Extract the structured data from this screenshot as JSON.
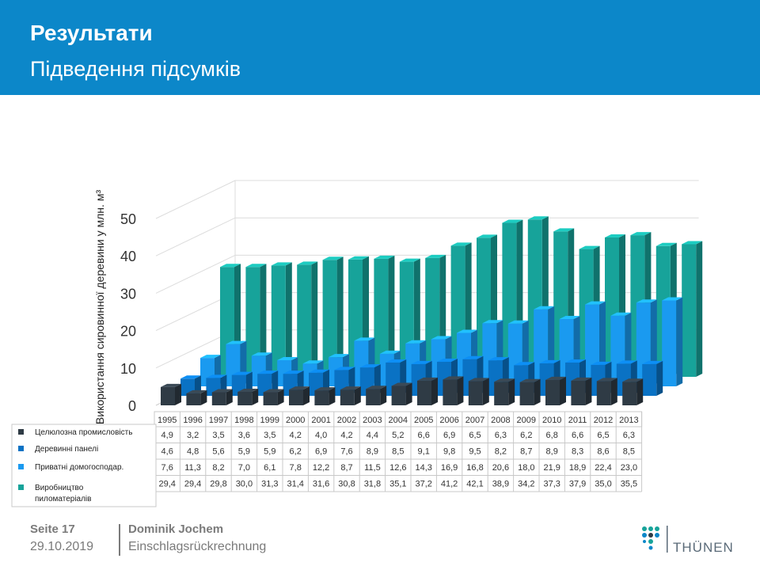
{
  "header": {
    "title": "Результати",
    "subtitle": "Підведення підсумків"
  },
  "chart_data": {
    "type": "bar",
    "style": "3d-clustered",
    "ylabel": "Використання сировинної деревини у млн. м³",
    "ylim": [
      0,
      50
    ],
    "yticks": [
      0,
      10,
      20,
      30,
      40,
      50
    ],
    "grid": true,
    "legend_position": "table-left",
    "categories": [
      "1995",
      "1996",
      "1997",
      "1998",
      "1999",
      "2000",
      "2001",
      "2002",
      "2003",
      "2004",
      "2005",
      "2006",
      "2007",
      "2008",
      "2009",
      "2010",
      "2011",
      "2012",
      "2013"
    ],
    "series": [
      {
        "name": "Целюлозна промисловіcть",
        "color": "#2f3b45",
        "values": [
          4.9,
          3.2,
          3.5,
          3.6,
          3.5,
          4.2,
          4.0,
          4.2,
          4.4,
          5.2,
          6.6,
          6.9,
          6.5,
          6.3,
          6.2,
          6.8,
          6.6,
          6.5,
          6.3
        ],
        "labels": [
          "4,9",
          "3,2",
          "3,5",
          "3,6",
          "3,5",
          "4,2",
          "4,0",
          "4,2",
          "4,4",
          "5,2",
          "6,6",
          "6,9",
          "6,5",
          "6,3",
          "6,2",
          "6,8",
          "6,6",
          "6,5",
          "6,3"
        ]
      },
      {
        "name": "Деревинні панелі",
        "color": "#0a72c4",
        "values": [
          4.6,
          4.8,
          5.6,
          5.9,
          5.9,
          6.2,
          6.9,
          7.6,
          8.9,
          8.5,
          9.1,
          9.8,
          9.5,
          8.2,
          8.7,
          8.9,
          8.3,
          8.6,
          8.5
        ],
        "labels": [
          "4,6",
          "4,8",
          "5,6",
          "5,9",
          "5,9",
          "6,2",
          "6,9",
          "7,6",
          "8,9",
          "8,5",
          "9,1",
          "9,8",
          "9,5",
          "8,2",
          "8,7",
          "8,9",
          "8,3",
          "8,6",
          "8,5"
        ]
      },
      {
        "name": "Приватні домогосподар.",
        "color": "#1a9af0",
        "values": [
          7.6,
          11.3,
          8.2,
          7.0,
          6.1,
          7.8,
          12.2,
          8.7,
          11.5,
          12.6,
          14.3,
          16.9,
          16.8,
          20.6,
          18.0,
          21.9,
          18.9,
          22.4,
          23.0
        ],
        "labels": [
          "7,6",
          "11,3",
          "8,2",
          "7,0",
          "6,1",
          "7,8",
          "12,2",
          "8,7",
          "11,5",
          "12,6",
          "14,3",
          "16,9",
          "16,8",
          "20,6",
          "18,0",
          "21,9",
          "18,9",
          "22,4",
          "23,0"
        ]
      },
      {
        "name": "Виробництво пиломатеріалів",
        "color": "#17a39a",
        "values": [
          29.4,
          29.4,
          29.8,
          30.0,
          31.3,
          31.4,
          31.6,
          30.8,
          31.8,
          35.1,
          37.2,
          41.2,
          42.1,
          38.9,
          34.2,
          37.3,
          37.9,
          35.0,
          35.5
        ],
        "labels": [
          "29,4",
          "29,4",
          "29,8",
          "30,0",
          "31,3",
          "31,4",
          "31,6",
          "30,8",
          "31,8",
          "35,1",
          "37,2",
          "41,2",
          "42,1",
          "38,9",
          "34,2",
          "37,3",
          "37,9",
          "35,0",
          "35,5"
        ]
      }
    ]
  },
  "footer": {
    "page": "Seite 17",
    "date": "29.10.2019",
    "author": "Dominik Jochem",
    "topic": "Einschlagsrückrechnung",
    "logo_text": "THÜNEN"
  }
}
